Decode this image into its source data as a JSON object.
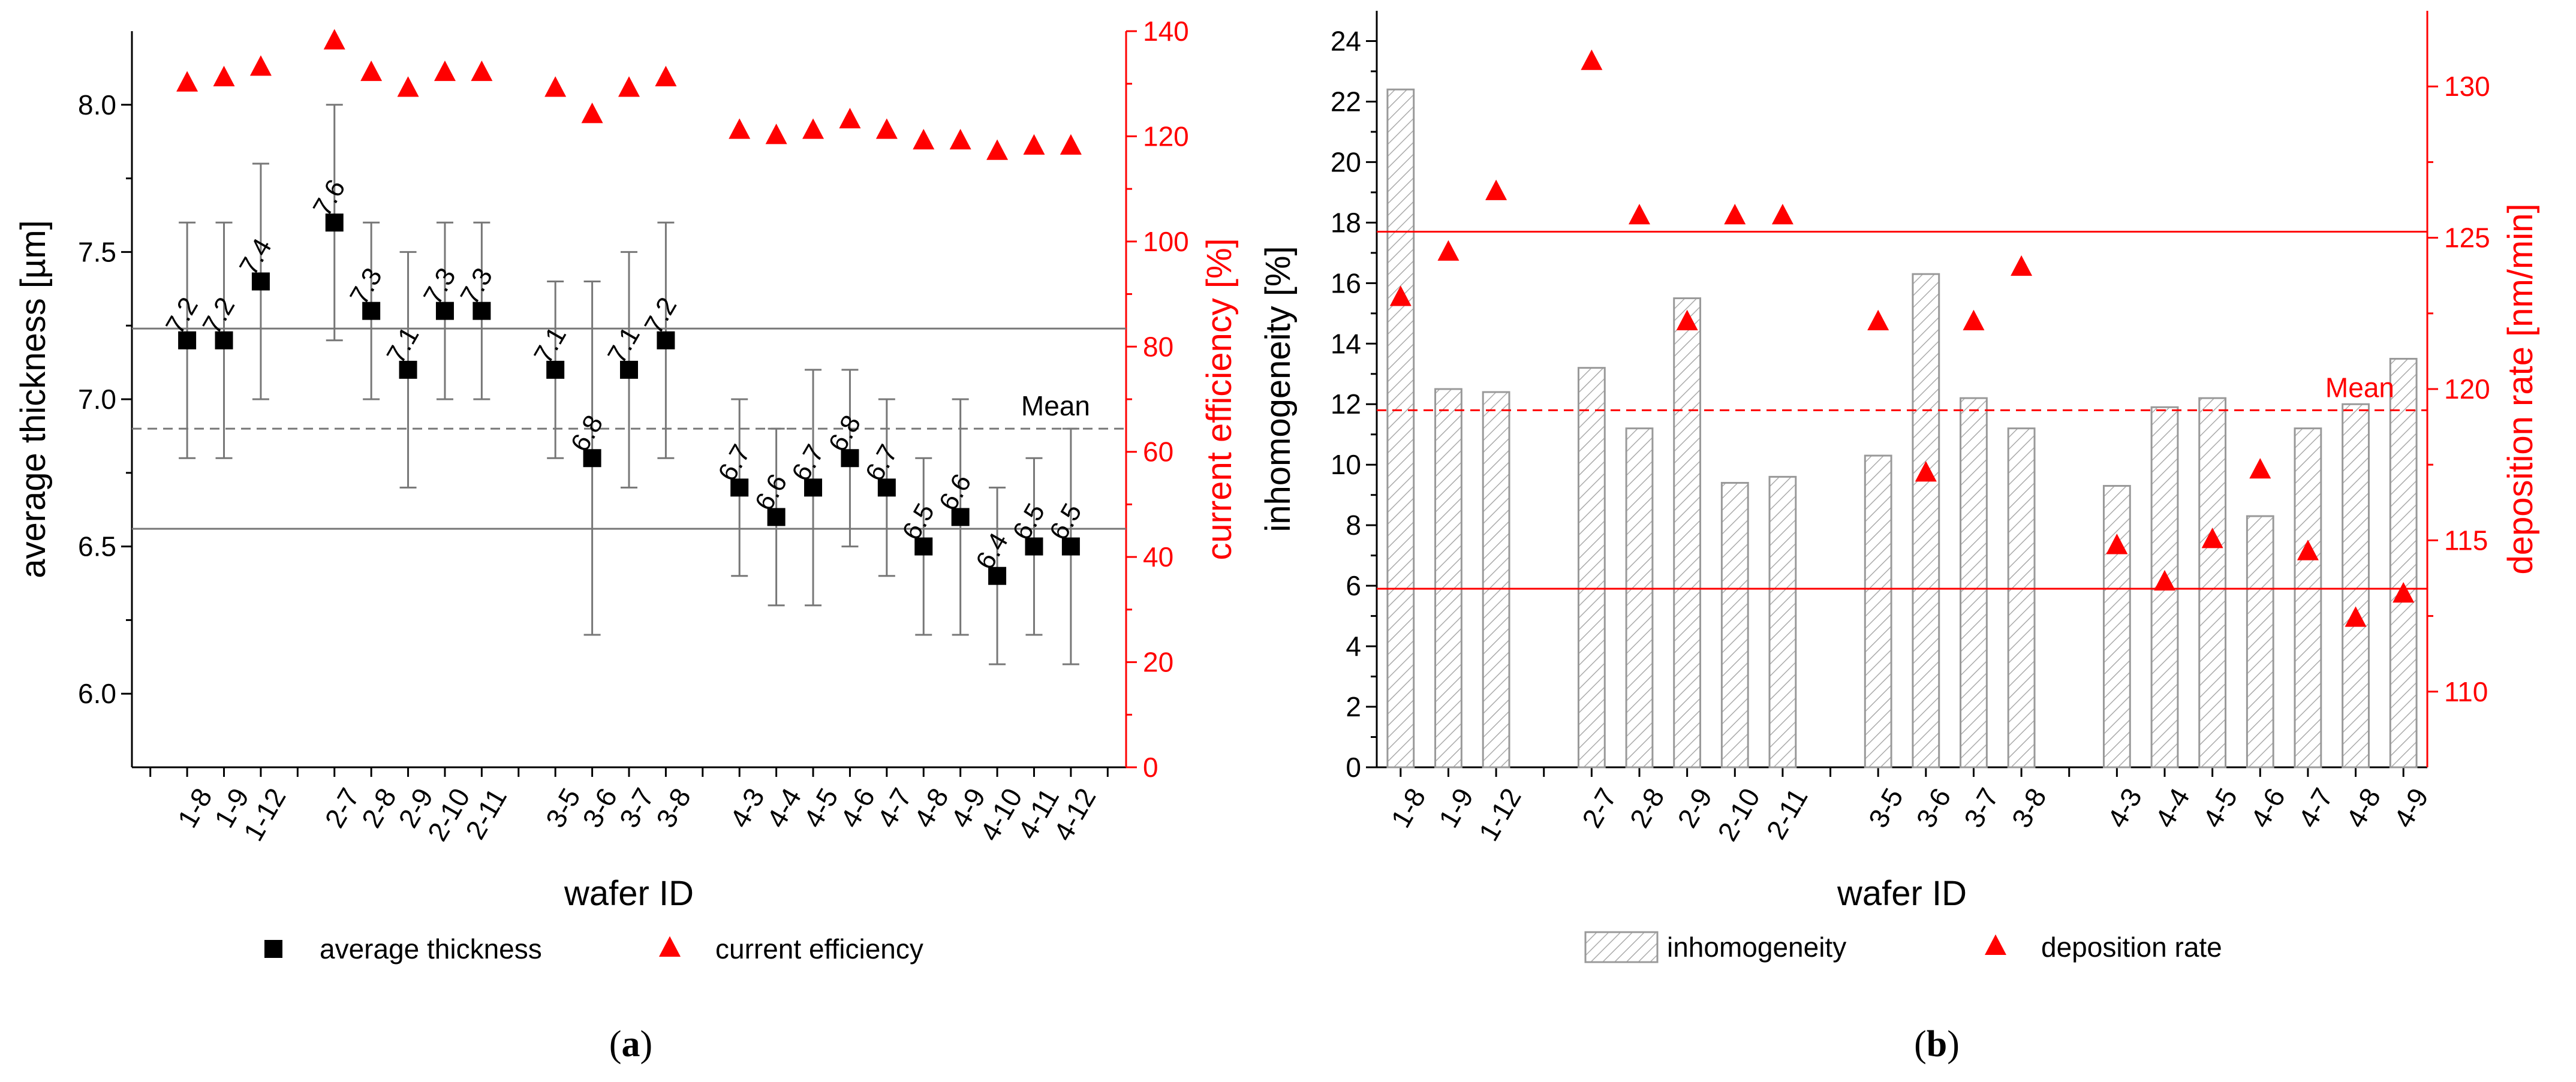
{
  "colors": {
    "black": "#000000",
    "red": "#ff0000",
    "gray": "#777777",
    "bar_hatch": "#999999"
  },
  "panel_labels": {
    "a": "a",
    "b": "b"
  },
  "chart_data": [
    {
      "panel": "a",
      "type": "scatter",
      "xlabel": "wafer ID",
      "ylabel_left": "average thickness [µm]",
      "ylabel_right": "current efficiency [%]",
      "ylim_left": [
        5.75,
        8.25
      ],
      "ylim_right": [
        0,
        140
      ],
      "yticks_left": [
        "6.0",
        "6.5",
        "7.0",
        "7.5",
        "8.0"
      ],
      "yticks_right": [
        "0",
        "20",
        "40",
        "60",
        "80",
        "100",
        "120",
        "140"
      ],
      "categories": [
        "1-8",
        "1-9",
        "1-12",
        "2-7",
        "2-8",
        "2-9",
        "2-10",
        "2-11",
        "3-5",
        "3-6",
        "3-7",
        "3-8",
        "4-3",
        "4-4",
        "4-5",
        "4-6",
        "4-7",
        "4-8",
        "4-9",
        "4-10",
        "4-11",
        "4-12"
      ],
      "x_positions": [
        2,
        3,
        4,
        6,
        7,
        8,
        9,
        10,
        12,
        13,
        14,
        15,
        17,
        18,
        19,
        20,
        21,
        22,
        23,
        24,
        25,
        26
      ],
      "x_range": [
        0.5,
        27.5
      ],
      "series": [
        {
          "name": "average thickness",
          "axis": "left",
          "marker": "square",
          "values": [
            7.2,
            7.2,
            7.4,
            7.6,
            7.3,
            7.1,
            7.3,
            7.3,
            7.1,
            6.8,
            7.1,
            7.2,
            6.7,
            6.6,
            6.7,
            6.8,
            6.7,
            6.5,
            6.6,
            6.4,
            6.5,
            6.5
          ],
          "labels": [
            "7.2",
            "7.2",
            "7.4",
            "7.6",
            "7.3",
            "7.1",
            "7.3",
            "7.3",
            "7.1",
            "6.8",
            "7.1",
            "7.2",
            "6.7",
            "6.6",
            "6.7",
            "6.8",
            "6.7",
            "6.5",
            "6.6",
            "6.4",
            "6.5",
            "6.5"
          ],
          "err_low": [
            6.8,
            6.8,
            7.0,
            7.2,
            7.0,
            6.7,
            7.0,
            7.0,
            6.8,
            6.2,
            6.7,
            6.8,
            6.4,
            6.3,
            6.3,
            6.5,
            6.4,
            6.2,
            6.2,
            6.1,
            6.2,
            6.1
          ],
          "err_high": [
            7.6,
            7.6,
            7.8,
            8.0,
            7.6,
            7.5,
            7.6,
            7.6,
            7.4,
            7.4,
            7.5,
            7.6,
            7.0,
            6.9,
            7.1,
            7.1,
            7.0,
            6.8,
            7.0,
            6.7,
            6.8,
            6.9
          ]
        },
        {
          "name": "current efficiency",
          "axis": "right",
          "marker": "triangle",
          "values": [
            130,
            131,
            133,
            138,
            132,
            129,
            132,
            132,
            129,
            124,
            129,
            131,
            121,
            120,
            121,
            123,
            121,
            119,
            119,
            117,
            118,
            118
          ]
        }
      ],
      "hlines_left": [
        {
          "y": 7.24,
          "style": "solid"
        },
        {
          "y": 6.9,
          "style": "dashed",
          "label": "Mean"
        },
        {
          "y": 6.56,
          "style": "solid"
        }
      ],
      "legend": {
        "placement": "bottom",
        "items": [
          "average thickness",
          "current efficiency"
        ]
      }
    },
    {
      "panel": "b",
      "type": "bar",
      "xlabel": "wafer ID",
      "ylabel_left": "inhomogeneity [%]",
      "ylabel_right": "deposition rate [nm/min]",
      "ylim_left": [
        0,
        25
      ],
      "ylim_right": [
        107.5,
        132.5
      ],
      "yticks_left": [
        "0",
        "2",
        "4",
        "6",
        "8",
        "10",
        "12",
        "14",
        "16",
        "18",
        "20",
        "22",
        "24"
      ],
      "yticks_right": [
        "110",
        "115",
        "120",
        "125",
        "130"
      ],
      "categories": [
        "1-8",
        "1-9",
        "1-12",
        "2-7",
        "2-8",
        "2-9",
        "2-10",
        "2-11",
        "3-5",
        "3-6",
        "3-7",
        "3-8",
        "4-3",
        "4-4",
        "4-5",
        "4-6",
        "4-7",
        "4-8",
        "4-9"
      ],
      "x_positions": [
        1,
        2,
        3,
        5,
        6,
        7,
        8,
        9,
        11,
        12,
        13,
        14,
        16,
        17,
        18,
        19,
        20,
        21,
        22
      ],
      "x_range": [
        0.5,
        22.5
      ],
      "series": [
        {
          "name": "inhomogeneity",
          "axis": "left",
          "marker": "hatched-bar",
          "values": [
            22.4,
            12.5,
            12.4,
            13.2,
            11.2,
            15.5,
            9.4,
            9.6,
            10.3,
            16.3,
            12.2,
            11.2,
            9.3,
            11.9,
            12.2,
            8.3,
            11.2,
            12.0,
            13.5
          ]
        },
        {
          "name": "deposition rate",
          "axis": "right",
          "marker": "triangle",
          "values": [
            123.0,
            124.5,
            126.5,
            130.8,
            125.7,
            122.2,
            125.7,
            125.7,
            122.2,
            117.2,
            122.2,
            124.0,
            114.8,
            113.6,
            115.0,
            117.3,
            114.6,
            112.4,
            113.2
          ]
        }
      ],
      "hlines_right": [
        {
          "y": 125.2,
          "style": "solid"
        },
        {
          "y": 119.3,
          "style": "dashed",
          "label": "Mean"
        },
        {
          "y": 113.4,
          "style": "solid"
        }
      ],
      "legend": {
        "placement": "bottom",
        "items": [
          "inhomogeneity",
          "deposition rate"
        ]
      }
    }
  ]
}
